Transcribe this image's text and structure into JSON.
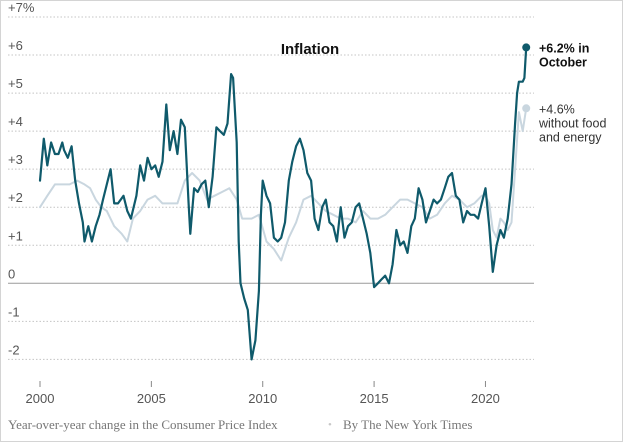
{
  "chart_data": {
    "type": "line",
    "title": "Inflation",
    "xlabel": "",
    "ylabel": "",
    "ylim": [
      -2.2,
      7
    ],
    "xlim": [
      2000,
      2022
    ],
    "x_ticks": [
      {
        "value": 2000,
        "label": "2000"
      },
      {
        "value": 2005,
        "label": "2005"
      },
      {
        "value": 2010,
        "label": "2010"
      },
      {
        "value": 2015,
        "label": "2015"
      },
      {
        "value": 2020,
        "label": "2020"
      }
    ],
    "y_ticks": [
      {
        "value": 7,
        "label": "+7%"
      },
      {
        "value": 6,
        "label": "+6"
      },
      {
        "value": 5,
        "label": "+5"
      },
      {
        "value": 4,
        "label": "+4"
      },
      {
        "value": 3,
        "label": "+3"
      },
      {
        "value": 2,
        "label": "+2"
      },
      {
        "value": 1,
        "label": "+1"
      },
      {
        "value": 0,
        "label": "0"
      },
      {
        "value": -1,
        "label": "-1"
      },
      {
        "value": -2,
        "label": "-2"
      }
    ],
    "series": [
      {
        "name": "Consumer Price Index",
        "color": "#0f5a6b",
        "points": [
          [
            2000.0,
            2.7
          ],
          [
            2000.17,
            3.8
          ],
          [
            2000.33,
            3.1
          ],
          [
            2000.5,
            3.7
          ],
          [
            2000.67,
            3.4
          ],
          [
            2000.83,
            3.4
          ],
          [
            2001.0,
            3.7
          ],
          [
            2001.08,
            3.5
          ],
          [
            2001.25,
            3.3
          ],
          [
            2001.42,
            3.6
          ],
          [
            2001.58,
            2.7
          ],
          [
            2001.75,
            2.1
          ],
          [
            2001.92,
            1.6
          ],
          [
            2002.0,
            1.1
          ],
          [
            2002.17,
            1.5
          ],
          [
            2002.33,
            1.1
          ],
          [
            2002.5,
            1.5
          ],
          [
            2002.67,
            1.8
          ],
          [
            2002.83,
            2.2
          ],
          [
            2003.0,
            2.6
          ],
          [
            2003.17,
            3.0
          ],
          [
            2003.33,
            2.1
          ],
          [
            2003.5,
            2.1
          ],
          [
            2003.75,
            2.3
          ],
          [
            2003.92,
            1.9
          ],
          [
            2004.08,
            1.7
          ],
          [
            2004.33,
            2.3
          ],
          [
            2004.5,
            3.1
          ],
          [
            2004.67,
            2.7
          ],
          [
            2004.83,
            3.3
          ],
          [
            2005.0,
            3.0
          ],
          [
            2005.17,
            3.1
          ],
          [
            2005.33,
            2.8
          ],
          [
            2005.5,
            3.2
          ],
          [
            2005.67,
            4.7
          ],
          [
            2005.83,
            3.5
          ],
          [
            2006.0,
            4.0
          ],
          [
            2006.17,
            3.4
          ],
          [
            2006.33,
            4.3
          ],
          [
            2006.5,
            4.1
          ],
          [
            2006.67,
            2.1
          ],
          [
            2006.75,
            1.3
          ],
          [
            2006.92,
            2.5
          ],
          [
            2007.08,
            2.4
          ],
          [
            2007.25,
            2.6
          ],
          [
            2007.42,
            2.7
          ],
          [
            2007.58,
            2.0
          ],
          [
            2007.75,
            2.8
          ],
          [
            2007.92,
            4.1
          ],
          [
            2008.08,
            4.0
          ],
          [
            2008.25,
            3.9
          ],
          [
            2008.42,
            4.2
          ],
          [
            2008.58,
            5.5
          ],
          [
            2008.67,
            5.4
          ],
          [
            2008.83,
            3.7
          ],
          [
            2008.92,
            1.1
          ],
          [
            2009.0,
            0.0
          ],
          [
            2009.17,
            -0.4
          ],
          [
            2009.33,
            -0.7
          ],
          [
            2009.5,
            -2.0
          ],
          [
            2009.67,
            -1.5
          ],
          [
            2009.83,
            -0.2
          ],
          [
            2009.92,
            1.8
          ],
          [
            2010.0,
            2.7
          ],
          [
            2010.17,
            2.3
          ],
          [
            2010.33,
            2.1
          ],
          [
            2010.5,
            1.2
          ],
          [
            2010.67,
            1.1
          ],
          [
            2010.83,
            1.2
          ],
          [
            2011.0,
            1.6
          ],
          [
            2011.17,
            2.7
          ],
          [
            2011.33,
            3.2
          ],
          [
            2011.5,
            3.6
          ],
          [
            2011.67,
            3.8
          ],
          [
            2011.83,
            3.5
          ],
          [
            2012.0,
            2.9
          ],
          [
            2012.17,
            2.7
          ],
          [
            2012.33,
            1.7
          ],
          [
            2012.5,
            1.4
          ],
          [
            2012.67,
            2.0
          ],
          [
            2012.83,
            2.2
          ],
          [
            2013.0,
            1.6
          ],
          [
            2013.17,
            1.5
          ],
          [
            2013.33,
            1.1
          ],
          [
            2013.5,
            2.0
          ],
          [
            2013.67,
            1.2
          ],
          [
            2013.83,
            1.5
          ],
          [
            2014.0,
            1.6
          ],
          [
            2014.17,
            2.0
          ],
          [
            2014.33,
            2.1
          ],
          [
            2014.5,
            1.7
          ],
          [
            2014.67,
            1.3
          ],
          [
            2014.83,
            0.8
          ],
          [
            2015.0,
            -0.1
          ],
          [
            2015.17,
            0.0
          ],
          [
            2015.33,
            0.1
          ],
          [
            2015.5,
            0.2
          ],
          [
            2015.67,
            0.0
          ],
          [
            2015.83,
            0.5
          ],
          [
            2016.0,
            1.4
          ],
          [
            2016.17,
            1.0
          ],
          [
            2016.33,
            1.1
          ],
          [
            2016.5,
            0.8
          ],
          [
            2016.67,
            1.5
          ],
          [
            2016.83,
            1.7
          ],
          [
            2017.0,
            2.5
          ],
          [
            2017.17,
            2.2
          ],
          [
            2017.33,
            1.6
          ],
          [
            2017.5,
            1.9
          ],
          [
            2017.67,
            2.2
          ],
          [
            2017.83,
            2.1
          ],
          [
            2018.0,
            2.2
          ],
          [
            2018.17,
            2.5
          ],
          [
            2018.33,
            2.8
          ],
          [
            2018.5,
            2.9
          ],
          [
            2018.67,
            2.3
          ],
          [
            2018.83,
            2.2
          ],
          [
            2019.0,
            1.6
          ],
          [
            2019.17,
            1.9
          ],
          [
            2019.33,
            1.8
          ],
          [
            2019.5,
            1.8
          ],
          [
            2019.67,
            1.7
          ],
          [
            2019.83,
            2.1
          ],
          [
            2020.0,
            2.5
          ],
          [
            2020.17,
            1.5
          ],
          [
            2020.33,
            0.3
          ],
          [
            2020.5,
            1.0
          ],
          [
            2020.67,
            1.4
          ],
          [
            2020.83,
            1.2
          ],
          [
            2021.0,
            1.7
          ],
          [
            2021.17,
            2.6
          ],
          [
            2021.33,
            4.2
          ],
          [
            2021.42,
            5.0
          ],
          [
            2021.5,
            5.3
          ],
          [
            2021.67,
            5.3
          ],
          [
            2021.75,
            5.4
          ],
          [
            2021.83,
            6.2
          ]
        ]
      },
      {
        "name": "Without food and energy",
        "color": "#c9d6df",
        "points": [
          [
            2000.0,
            2.0
          ],
          [
            2000.33,
            2.3
          ],
          [
            2000.67,
            2.6
          ],
          [
            2001.0,
            2.6
          ],
          [
            2001.33,
            2.6
          ],
          [
            2001.67,
            2.7
          ],
          [
            2002.0,
            2.6
          ],
          [
            2002.25,
            2.5
          ],
          [
            2002.5,
            2.2
          ],
          [
            2002.75,
            2.0
          ],
          [
            2003.0,
            1.9
          ],
          [
            2003.33,
            1.5
          ],
          [
            2003.67,
            1.3
          ],
          [
            2003.92,
            1.1
          ],
          [
            2004.17,
            1.7
          ],
          [
            2004.5,
            1.9
          ],
          [
            2004.83,
            2.2
          ],
          [
            2005.17,
            2.3
          ],
          [
            2005.5,
            2.1
          ],
          [
            2005.83,
            2.1
          ],
          [
            2006.17,
            2.1
          ],
          [
            2006.5,
            2.7
          ],
          [
            2006.83,
            2.9
          ],
          [
            2007.17,
            2.7
          ],
          [
            2007.5,
            2.2
          ],
          [
            2007.83,
            2.3
          ],
          [
            2008.17,
            2.4
          ],
          [
            2008.5,
            2.5
          ],
          [
            2008.83,
            2.2
          ],
          [
            2009.08,
            1.7
          ],
          [
            2009.5,
            1.7
          ],
          [
            2009.83,
            1.8
          ],
          [
            2010.17,
            1.1
          ],
          [
            2010.5,
            0.9
          ],
          [
            2010.83,
            0.6
          ],
          [
            2011.17,
            1.2
          ],
          [
            2011.5,
            1.6
          ],
          [
            2011.83,
            2.2
          ],
          [
            2012.17,
            2.3
          ],
          [
            2012.5,
            2.1
          ],
          [
            2012.83,
            1.9
          ],
          [
            2013.17,
            1.8
          ],
          [
            2013.5,
            1.7
          ],
          [
            2013.83,
            1.7
          ],
          [
            2014.17,
            1.6
          ],
          [
            2014.5,
            1.9
          ],
          [
            2014.83,
            1.7
          ],
          [
            2015.17,
            1.7
          ],
          [
            2015.5,
            1.8
          ],
          [
            2015.83,
            2.0
          ],
          [
            2016.17,
            2.2
          ],
          [
            2016.5,
            2.2
          ],
          [
            2016.83,
            2.1
          ],
          [
            2017.17,
            2.0
          ],
          [
            2017.5,
            1.7
          ],
          [
            2017.83,
            1.8
          ],
          [
            2018.17,
            2.1
          ],
          [
            2018.5,
            2.3
          ],
          [
            2018.83,
            2.2
          ],
          [
            2019.17,
            2.0
          ],
          [
            2019.5,
            2.1
          ],
          [
            2019.83,
            2.3
          ],
          [
            2020.0,
            2.3
          ],
          [
            2020.17,
            2.1
          ],
          [
            2020.33,
            1.4
          ],
          [
            2020.5,
            1.2
          ],
          [
            2020.67,
            1.7
          ],
          [
            2020.83,
            1.6
          ],
          [
            2021.0,
            1.4
          ],
          [
            2021.17,
            1.6
          ],
          [
            2021.33,
            3.0
          ],
          [
            2021.5,
            4.5
          ],
          [
            2021.67,
            4.0
          ],
          [
            2021.83,
            4.6
          ]
        ]
      }
    ],
    "annotations": [
      {
        "text_lines": [
          "+6.2% in",
          "October"
        ],
        "series": 0
      },
      {
        "text_lines": [
          "+4.6%",
          "without food",
          "and energy"
        ],
        "series": 1
      }
    ]
  },
  "footer": {
    "description": "Year-over-year change in the Consumer Price Index",
    "separator": "•",
    "credit": "By The New York Times"
  }
}
